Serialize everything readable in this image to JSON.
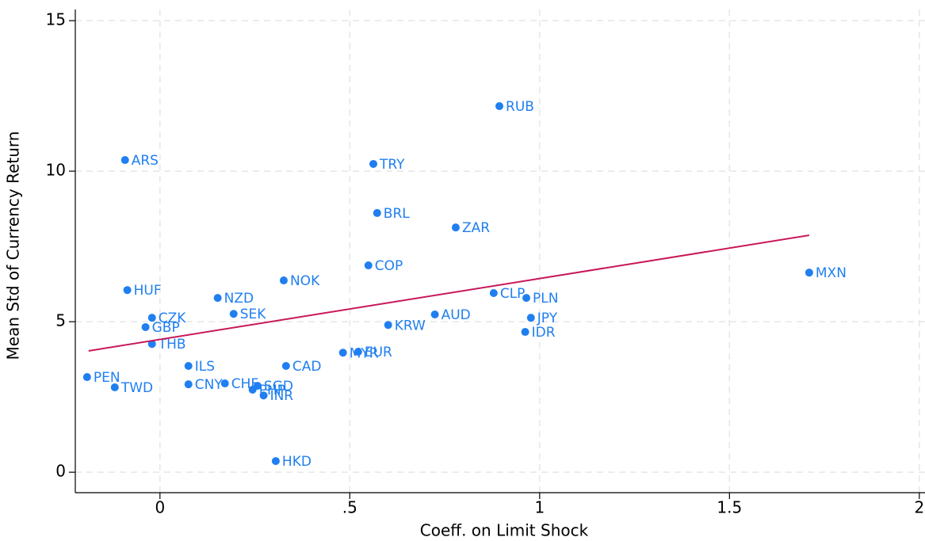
{
  "chart_data": {
    "type": "scatter",
    "xlabel": "Coeff. on Limit Shock",
    "ylabel": "Mean Std of Currency Return",
    "labels": [
      "RUB",
      "ARS",
      "TRY",
      "BRL",
      "ZAR",
      "COP",
      "MXN",
      "NOK",
      "HUF",
      "CLP",
      "NZD",
      "PLN",
      "SEK",
      "AUD",
      "CZK",
      "JPY",
      "KRW",
      "GBP",
      "IDR",
      "THB",
      "MYR",
      "EUR",
      "ILS",
      "CAD",
      "PEN",
      "CNY",
      "CHF",
      "SGD",
      "PHP",
      "TWD",
      "INR",
      "HKD"
    ],
    "x": [
      0.894,
      -0.092,
      0.562,
      0.572,
      0.779,
      0.549,
      1.71,
      0.326,
      -0.086,
      0.879,
      0.152,
      0.965,
      0.194,
      0.724,
      -0.021,
      0.977,
      0.601,
      -0.038,
      0.962,
      -0.021,
      0.482,
      0.522,
      0.075,
      0.332,
      -0.192,
      0.075,
      0.171,
      0.257,
      0.244,
      -0.119,
      0.273,
      0.305
    ],
    "values": [
      12.16,
      10.37,
      10.24,
      8.61,
      8.13,
      6.87,
      6.63,
      6.37,
      6.05,
      5.95,
      5.79,
      5.79,
      5.26,
      5.24,
      5.13,
      5.13,
      4.89,
      4.82,
      4.66,
      4.26,
      3.97,
      4.0,
      3.53,
      3.53,
      3.16,
      2.92,
      2.95,
      2.87,
      2.74,
      2.82,
      2.55,
      0.37
    ],
    "color": "#1f7ff0",
    "fit": {
      "x": [
        -0.188,
        1.71
      ],
      "values": [
        4.03,
        7.87
      ],
      "color": "#c8185a"
    },
    "xlim": [
      -0.223,
      2.015
    ],
    "ylim": [
      -0.68,
      15.37
    ],
    "xticks": [
      0,
      {
        "value": 0.5,
        "label": ".5"
      },
      1,
      1.5,
      2
    ],
    "yticks": [
      0,
      5,
      10,
      15
    ],
    "grid": true
  }
}
